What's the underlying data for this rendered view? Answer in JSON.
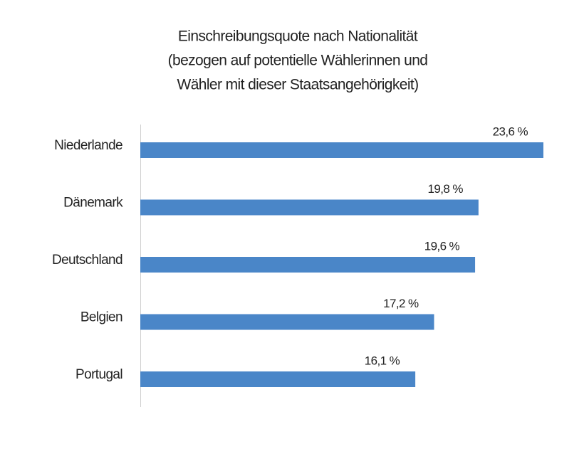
{
  "chart_data": {
    "type": "bar",
    "orientation": "horizontal",
    "title": [
      "Einschreibungsquote nach Nationalität",
      "(bezogen auf potentielle Wählerinnen und",
      "Wähler mit dieser Staatsangehörigkeit)"
    ],
    "categories": [
      "Niederlande",
      "Dänemark",
      "Deutschland",
      "Belgien",
      "Portugal"
    ],
    "values": [
      23.6,
      19.8,
      19.6,
      17.2,
      16.1
    ],
    "value_labels": [
      "23,6 %",
      "19,8 %",
      "19,6 %",
      "17,2 %",
      "16,1 %"
    ],
    "color": "#4a86c8"
  }
}
